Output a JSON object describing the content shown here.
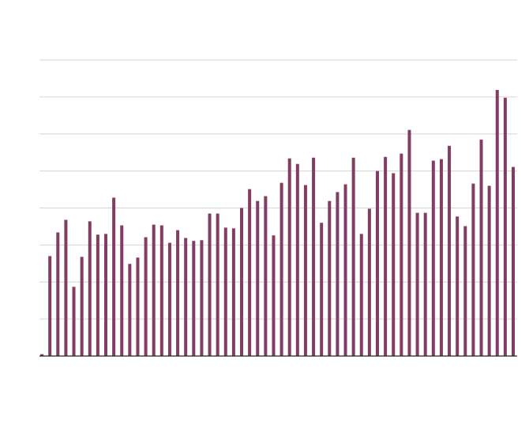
{
  "chart_data": {
    "type": "bar",
    "categories": [
      null,
      null,
      null,
      null,
      null,
      null,
      null,
      null,
      null,
      null,
      null,
      null,
      null,
      null,
      null,
      null,
      null,
      null,
      null,
      null,
      null,
      null,
      null,
      null,
      null,
      null,
      null,
      null,
      null,
      null,
      null,
      null,
      null,
      null,
      null,
      null,
      null,
      null,
      null,
      null,
      null,
      null,
      null,
      null,
      null,
      null,
      null,
      null,
      null,
      null,
      null,
      null,
      null,
      null,
      null,
      null,
      null,
      null,
      null,
      null
    ],
    "values": [
      0.05,
      2.7,
      3.34,
      3.68,
      1.87,
      2.68,
      3.64,
      3.28,
      3.3,
      4.28,
      3.53,
      2.49,
      2.66,
      3.21,
      3.55,
      3.53,
      3.06,
      3.4,
      3.19,
      3.11,
      3.13,
      3.85,
      3.85,
      3.47,
      3.45,
      4.0,
      4.51,
      4.19,
      4.32,
      3.26,
      4.68,
      5.34,
      5.19,
      4.62,
      5.36,
      3.6,
      4.19,
      4.43,
      4.64,
      5.36,
      3.3,
      3.98,
      5.0,
      5.38,
      4.94,
      5.47,
      6.11,
      3.87,
      3.87,
      5.28,
      5.32,
      5.68,
      3.77,
      3.51,
      4.66,
      5.85,
      4.6,
      7.19,
      6.98,
      5.11
    ],
    "color": "#833d63",
    "ylim": [
      0,
      8
    ],
    "yticks": [
      0,
      1,
      2,
      3,
      4,
      5,
      6,
      7,
      8
    ],
    "grid": true
  }
}
